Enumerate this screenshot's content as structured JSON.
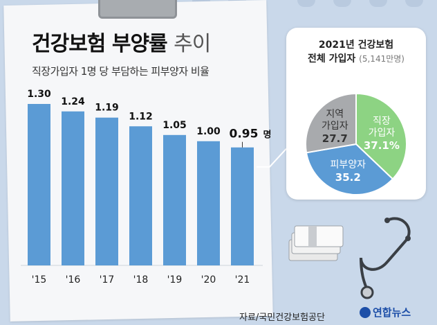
{
  "header": {
    "title_main": "건강보험 부양률",
    "title_light": "추이",
    "subtitle": "직장가입자 1명 당 부담하는 피부양자 비율"
  },
  "chart_data": [
    {
      "type": "bar",
      "categories": [
        "'15",
        "'16",
        "'17",
        "'18",
        "'19",
        "'20",
        "'21"
      ],
      "values": [
        1.3,
        1.24,
        1.19,
        1.12,
        1.05,
        1.0,
        0.95
      ],
      "value_labels": [
        "1.30",
        "1.24",
        "1.19",
        "1.12",
        "1.05",
        "1.00",
        "0.95"
      ],
      "last_value_unit": "명",
      "bar_color": "#5b9bd5",
      "title": "건강보험 부양률 추이",
      "subtitle": "직장가입자 1명 당 부담하는 피부양자 비율",
      "xlabel": "",
      "ylabel": "",
      "ylim": [
        0,
        1.4
      ],
      "grid": false
    },
    {
      "type": "pie",
      "title_line1": "2021년 건강보험",
      "title_line2": "전체 가입자",
      "title_note": "(5,141만명)",
      "slices": [
        {
          "label_lines": [
            "직장",
            "가입자"
          ],
          "value": 37.1,
          "value_label": "37.1%",
          "color": "#8dd383",
          "text_color": "#ffffff"
        },
        {
          "label_lines": [
            "피부양자"
          ],
          "value": 35.2,
          "value_label": "35.2",
          "color": "#5b9bd5",
          "text_color": "#ffffff"
        },
        {
          "label_lines": [
            "지역",
            "가입자"
          ],
          "value": 27.7,
          "value_label": "27.7",
          "color": "#a8aaad",
          "text_color": "#333333"
        }
      ]
    }
  ],
  "footer": {
    "source": "자료/국민건강보험공단",
    "logo": "연합뉴스"
  }
}
